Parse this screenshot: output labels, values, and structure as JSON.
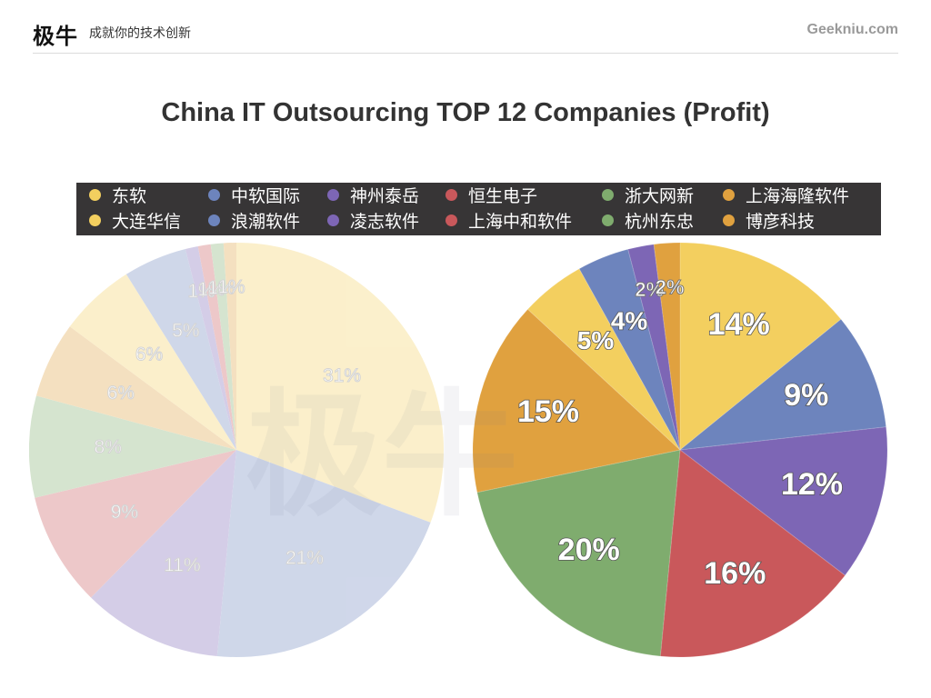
{
  "header": {
    "brand_logo": "极牛",
    "brand_slogan": "成就你的技术创新",
    "site_url": "Geekniu.com"
  },
  "colors": {
    "legend_bg": "#373536",
    "yellow": "#f3cf5f",
    "blue": "#6d84bd",
    "purple": "#7d66b5",
    "red": "#c9585b",
    "green": "#7fac6e",
    "orange": "#e0a13f"
  },
  "chart_data": {
    "type": "pie",
    "title": "China IT Outsourcing TOP 12 Companies (Profit)",
    "legend": [
      {
        "label": "东软",
        "color": "#f3cf5f"
      },
      {
        "label": "中软国际",
        "color": "#6d84bd"
      },
      {
        "label": "神州泰岳",
        "color": "#7d66b5"
      },
      {
        "label": "恒生电子",
        "color": "#c9585b"
      },
      {
        "label": "浙大网新",
        "color": "#7fac6e"
      },
      {
        "label": "上海海隆软件",
        "color": "#e0a13f"
      },
      {
        "label": "大连华信",
        "color": "#f3cf5f"
      },
      {
        "label": "浪潮软件",
        "color": "#6d84bd"
      },
      {
        "label": "凌志软件",
        "color": "#7d66b5"
      },
      {
        "label": "上海中和软件",
        "color": "#c9585b"
      },
      {
        "label": "杭州东忠",
        "color": "#7fac6e"
      },
      {
        "label": "博彦科技",
        "color": "#e0a13f"
      }
    ],
    "pies": [
      {
        "faded": true,
        "slices": [
          {
            "value": 31,
            "label": "31%",
            "color": "#f3cf5f"
          },
          {
            "value": 21,
            "label": "21%",
            "color": "#6d84bd"
          },
          {
            "value": 11,
            "label": "11%",
            "color": "#7d66b5"
          },
          {
            "value": 9,
            "label": "9%",
            "color": "#c9585b"
          },
          {
            "value": 8,
            "label": "8%",
            "color": "#7fac6e"
          },
          {
            "value": 6,
            "label": "6%",
            "color": "#e0a13f"
          },
          {
            "value": 6,
            "label": "6%",
            "color": "#f3cf5f"
          },
          {
            "value": 5,
            "label": "5%",
            "color": "#6d84bd"
          },
          {
            "value": 1,
            "label": "1%",
            "color": "#7d66b5"
          },
          {
            "value": 1,
            "label": "1%",
            "color": "#c9585b"
          },
          {
            "value": 1,
            "label": "1%",
            "color": "#7fac6e"
          },
          {
            "value": 1,
            "label": "1%",
            "color": "#e0a13f"
          }
        ]
      },
      {
        "faded": false,
        "slices": [
          {
            "value": 14,
            "label": "14%",
            "color": "#f3cf5f"
          },
          {
            "value": 9,
            "label": "9%",
            "color": "#6d84bd"
          },
          {
            "value": 12,
            "label": "12%",
            "color": "#7d66b5"
          },
          {
            "value": 16,
            "label": "16%",
            "color": "#c9585b"
          },
          {
            "value": 20,
            "label": "20%",
            "color": "#7fac6e"
          },
          {
            "value": 15,
            "label": "15%",
            "color": "#e0a13f"
          },
          {
            "value": 5,
            "label": "5%",
            "color": "#f3cf5f"
          },
          {
            "value": 4,
            "label": "4%",
            "color": "#6d84bd"
          },
          {
            "value": 2,
            "label": "2%",
            "color": "#7d66b5"
          },
          {
            "value": 0,
            "label": "",
            "color": "#c9585b"
          },
          {
            "value": 0,
            "label": "",
            "color": "#7fac6e"
          },
          {
            "value": 2,
            "label": "2%",
            "color": "#e0a13f"
          }
        ]
      }
    ]
  }
}
